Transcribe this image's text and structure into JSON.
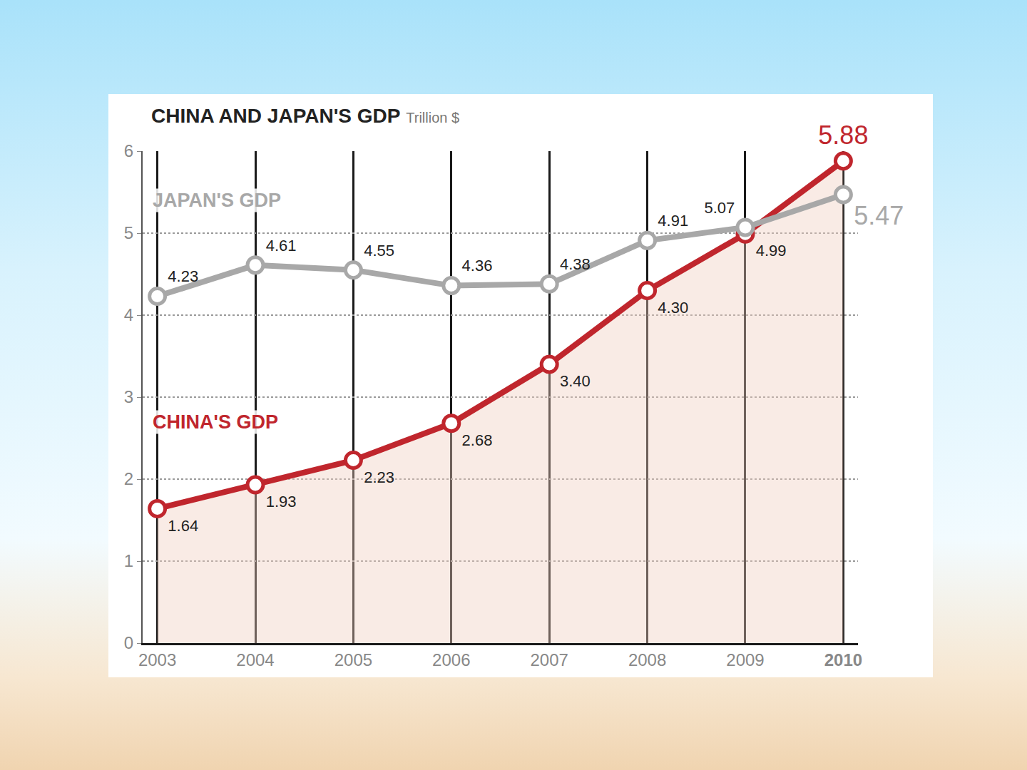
{
  "chart_data": {
    "type": "line",
    "title": "CHINA AND JAPAN'S GDP",
    "subtitle": "Trillion $",
    "x": [
      2003,
      2004,
      2005,
      2006,
      2007,
      2008,
      2009,
      2010
    ],
    "xlim": [
      2002.85,
      2010.15
    ],
    "xticks": [
      2003,
      2004,
      2005,
      2006,
      2007,
      2008,
      2009,
      2010
    ],
    "ylim": [
      0,
      6
    ],
    "yticks": [
      0,
      1,
      2,
      3,
      4,
      5,
      6
    ],
    "grid": true,
    "data_labels": true,
    "series": [
      {
        "name": "JAPAN'S GDP",
        "color": "#a8a8a8",
        "values": [
          4.23,
          4.61,
          4.55,
          4.36,
          4.38,
          4.91,
          5.07,
          5.47
        ],
        "value_labels": [
          "4.23",
          "4.61",
          "4.55",
          "4.36",
          "4.38",
          "4.91",
          "5.07",
          "5.47"
        ]
      },
      {
        "name": "CHINA'S GDP",
        "color": "#c0262d",
        "values": [
          1.64,
          1.93,
          2.23,
          2.68,
          3.4,
          4.3,
          4.99,
          5.88
        ],
        "value_labels": [
          "1.64",
          "1.93",
          "2.23",
          "2.68",
          "3.40",
          "4.30",
          "4.99",
          "5.88"
        ]
      }
    ]
  }
}
